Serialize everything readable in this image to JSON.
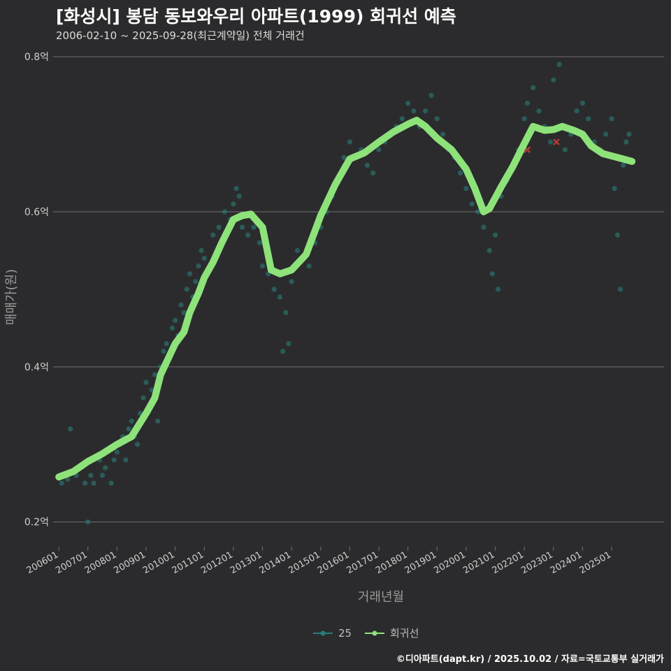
{
  "title": "[화성시] 봉담 동보와우리 아파트(1999) 회귀선 예측",
  "subtitle": "2006-02-10 ~ 2025-09-28(최근계약일) 전체 거래건",
  "footer": "©디아파트(dapt.kr) / 2025.10.02 / 자료=국토교통부 실거래가",
  "colors": {
    "background": "#2b2b2d",
    "grid": "#707070",
    "scatter": "#2a7d78",
    "regression": "#8ee27a",
    "highlight": "#b33a3a"
  },
  "chart_data": {
    "type": "scatter",
    "xlabel": "거래년월",
    "ylabel": "매매가(원)",
    "x_ticks": [
      "200601",
      "200701",
      "200801",
      "200901",
      "201001",
      "201101",
      "201201",
      "201301",
      "201401",
      "201501",
      "201601",
      "201701",
      "201801",
      "201901",
      "202001",
      "202101",
      "202201",
      "202301",
      "202401",
      "202501"
    ],
    "y_ticks": [
      {
        "value": 0.2,
        "label": "0.2억"
      },
      {
        "value": 0.4,
        "label": "0.4억"
      },
      {
        "value": 0.6,
        "label": "0.6억"
      },
      {
        "value": 0.8,
        "label": "0.8억"
      }
    ],
    "xlim": [
      2005.9,
      2026.8
    ],
    "ylim": [
      0.17,
      0.81
    ],
    "grid": true,
    "legend": {
      "position": "bottom",
      "entries": [
        {
          "name": "25",
          "color": "#2a7d78"
        },
        {
          "name": "회귀선",
          "color": "#8ee27a"
        }
      ]
    },
    "series": [
      {
        "name": "25",
        "points": [
          [
            2006.1,
            0.25
          ],
          [
            2006.3,
            0.255
          ],
          [
            2006.4,
            0.32
          ],
          [
            2006.6,
            0.26
          ],
          [
            2006.7,
            0.27
          ],
          [
            2006.9,
            0.25
          ],
          [
            2007.0,
            0.2
          ],
          [
            2007.1,
            0.26
          ],
          [
            2007.2,
            0.25
          ],
          [
            2007.4,
            0.28
          ],
          [
            2007.5,
            0.26
          ],
          [
            2007.6,
            0.27
          ],
          [
            2007.8,
            0.25
          ],
          [
            2007.9,
            0.28
          ],
          [
            2008.0,
            0.29
          ],
          [
            2008.1,
            0.3
          ],
          [
            2008.2,
            0.31
          ],
          [
            2008.3,
            0.28
          ],
          [
            2008.4,
            0.32
          ],
          [
            2008.5,
            0.33
          ],
          [
            2008.6,
            0.31
          ],
          [
            2008.7,
            0.3
          ],
          [
            2008.8,
            0.34
          ],
          [
            2008.9,
            0.36
          ],
          [
            2009.0,
            0.38
          ],
          [
            2009.1,
            0.35
          ],
          [
            2009.2,
            0.37
          ],
          [
            2009.3,
            0.39
          ],
          [
            2009.4,
            0.33
          ],
          [
            2009.5,
            0.4
          ],
          [
            2009.6,
            0.42
          ],
          [
            2009.7,
            0.43
          ],
          [
            2009.8,
            0.41
          ],
          [
            2009.9,
            0.45
          ],
          [
            2010.0,
            0.46
          ],
          [
            2010.1,
            0.44
          ],
          [
            2010.2,
            0.48
          ],
          [
            2010.3,
            0.47
          ],
          [
            2010.4,
            0.5
          ],
          [
            2010.5,
            0.52
          ],
          [
            2010.6,
            0.49
          ],
          [
            2010.7,
            0.51
          ],
          [
            2010.8,
            0.53
          ],
          [
            2010.9,
            0.55
          ],
          [
            2011.0,
            0.54
          ],
          [
            2011.1,
            0.52
          ],
          [
            2011.3,
            0.57
          ],
          [
            2011.5,
            0.58
          ],
          [
            2011.7,
            0.6
          ],
          [
            2011.9,
            0.59
          ],
          [
            2012.0,
            0.61
          ],
          [
            2012.1,
            0.63
          ],
          [
            2012.2,
            0.62
          ],
          [
            2012.3,
            0.58
          ],
          [
            2012.5,
            0.57
          ],
          [
            2012.7,
            0.58
          ],
          [
            2012.9,
            0.56
          ],
          [
            2013.0,
            0.53
          ],
          [
            2013.2,
            0.52
          ],
          [
            2013.4,
            0.5
          ],
          [
            2013.6,
            0.49
          ],
          [
            2013.7,
            0.42
          ],
          [
            2013.8,
            0.47
          ],
          [
            2013.9,
            0.43
          ],
          [
            2014.0,
            0.51
          ],
          [
            2014.2,
            0.55
          ],
          [
            2014.4,
            0.54
          ],
          [
            2014.6,
            0.53
          ],
          [
            2014.8,
            0.56
          ],
          [
            2015.0,
            0.58
          ],
          [
            2015.2,
            0.6
          ],
          [
            2015.4,
            0.62
          ],
          [
            2015.6,
            0.64
          ],
          [
            2015.8,
            0.67
          ],
          [
            2016.0,
            0.69
          ],
          [
            2016.2,
            0.67
          ],
          [
            2016.4,
            0.68
          ],
          [
            2016.6,
            0.66
          ],
          [
            2016.8,
            0.65
          ],
          [
            2017.0,
            0.68
          ],
          [
            2017.2,
            0.69
          ],
          [
            2017.4,
            0.7
          ],
          [
            2017.6,
            0.71
          ],
          [
            2017.8,
            0.72
          ],
          [
            2018.0,
            0.74
          ],
          [
            2018.2,
            0.73
          ],
          [
            2018.4,
            0.71
          ],
          [
            2018.6,
            0.73
          ],
          [
            2018.8,
            0.75
          ],
          [
            2019.0,
            0.72
          ],
          [
            2019.2,
            0.7
          ],
          [
            2019.4,
            0.68
          ],
          [
            2019.6,
            0.67
          ],
          [
            2019.8,
            0.65
          ],
          [
            2020.0,
            0.63
          ],
          [
            2020.2,
            0.61
          ],
          [
            2020.4,
            0.6
          ],
          [
            2020.6,
            0.58
          ],
          [
            2020.8,
            0.55
          ],
          [
            2020.9,
            0.52
          ],
          [
            2021.0,
            0.57
          ],
          [
            2021.1,
            0.5
          ],
          [
            2021.2,
            0.62
          ],
          [
            2021.4,
            0.64
          ],
          [
            2021.6,
            0.66
          ],
          [
            2021.8,
            0.68
          ],
          [
            2022.0,
            0.72
          ],
          [
            2022.1,
            0.74
          ],
          [
            2022.3,
            0.76
          ],
          [
            2022.5,
            0.73
          ],
          [
            2022.7,
            0.71
          ],
          [
            2022.9,
            0.69
          ],
          [
            2023.0,
            0.77
          ],
          [
            2023.2,
            0.79
          ],
          [
            2023.4,
            0.68
          ],
          [
            2023.6,
            0.7
          ],
          [
            2023.8,
            0.73
          ],
          [
            2024.0,
            0.74
          ],
          [
            2024.2,
            0.72
          ],
          [
            2024.4,
            0.69
          ],
          [
            2024.6,
            0.68
          ],
          [
            2024.8,
            0.7
          ],
          [
            2025.0,
            0.72
          ],
          [
            2025.1,
            0.63
          ],
          [
            2025.2,
            0.57
          ],
          [
            2025.3,
            0.5
          ],
          [
            2025.4,
            0.66
          ],
          [
            2025.5,
            0.69
          ],
          [
            2025.6,
            0.7
          ]
        ]
      },
      {
        "name": "회귀선",
        "points": [
          [
            2006.0,
            0.258
          ],
          [
            2006.5,
            0.265
          ],
          [
            2007.0,
            0.278
          ],
          [
            2007.5,
            0.288
          ],
          [
            2008.0,
            0.3
          ],
          [
            2008.5,
            0.31
          ],
          [
            2009.0,
            0.34
          ],
          [
            2009.3,
            0.36
          ],
          [
            2009.5,
            0.39
          ],
          [
            2010.0,
            0.43
          ],
          [
            2010.3,
            0.445
          ],
          [
            2010.5,
            0.47
          ],
          [
            2010.8,
            0.495
          ],
          [
            2011.0,
            0.515
          ],
          [
            2011.3,
            0.535
          ],
          [
            2011.6,
            0.56
          ],
          [
            2012.0,
            0.59
          ],
          [
            2012.3,
            0.595
          ],
          [
            2012.6,
            0.597
          ],
          [
            2013.0,
            0.58
          ],
          [
            2013.3,
            0.525
          ],
          [
            2013.6,
            0.52
          ],
          [
            2014.0,
            0.525
          ],
          [
            2014.5,
            0.545
          ],
          [
            2015.0,
            0.595
          ],
          [
            2015.5,
            0.635
          ],
          [
            2016.0,
            0.668
          ],
          [
            2016.5,
            0.676
          ],
          [
            2017.0,
            0.69
          ],
          [
            2017.5,
            0.703
          ],
          [
            2018.0,
            0.713
          ],
          [
            2018.3,
            0.718
          ],
          [
            2018.6,
            0.71
          ],
          [
            2019.0,
            0.695
          ],
          [
            2019.5,
            0.68
          ],
          [
            2020.0,
            0.655
          ],
          [
            2020.3,
            0.63
          ],
          [
            2020.6,
            0.6
          ],
          [
            2020.8,
            0.604
          ],
          [
            2021.2,
            0.632
          ],
          [
            2021.6,
            0.658
          ],
          [
            2022.0,
            0.688
          ],
          [
            2022.3,
            0.71
          ],
          [
            2022.7,
            0.705
          ],
          [
            2023.0,
            0.706
          ],
          [
            2023.3,
            0.71
          ],
          [
            2023.7,
            0.705
          ],
          [
            2024.0,
            0.7
          ],
          [
            2024.3,
            0.685
          ],
          [
            2024.7,
            0.675
          ],
          [
            2025.2,
            0.67
          ],
          [
            2025.7,
            0.665
          ]
        ]
      }
    ],
    "highlighted_points": [
      [
        2022.1,
        0.68
      ],
      [
        2023.1,
        0.69
      ]
    ]
  }
}
